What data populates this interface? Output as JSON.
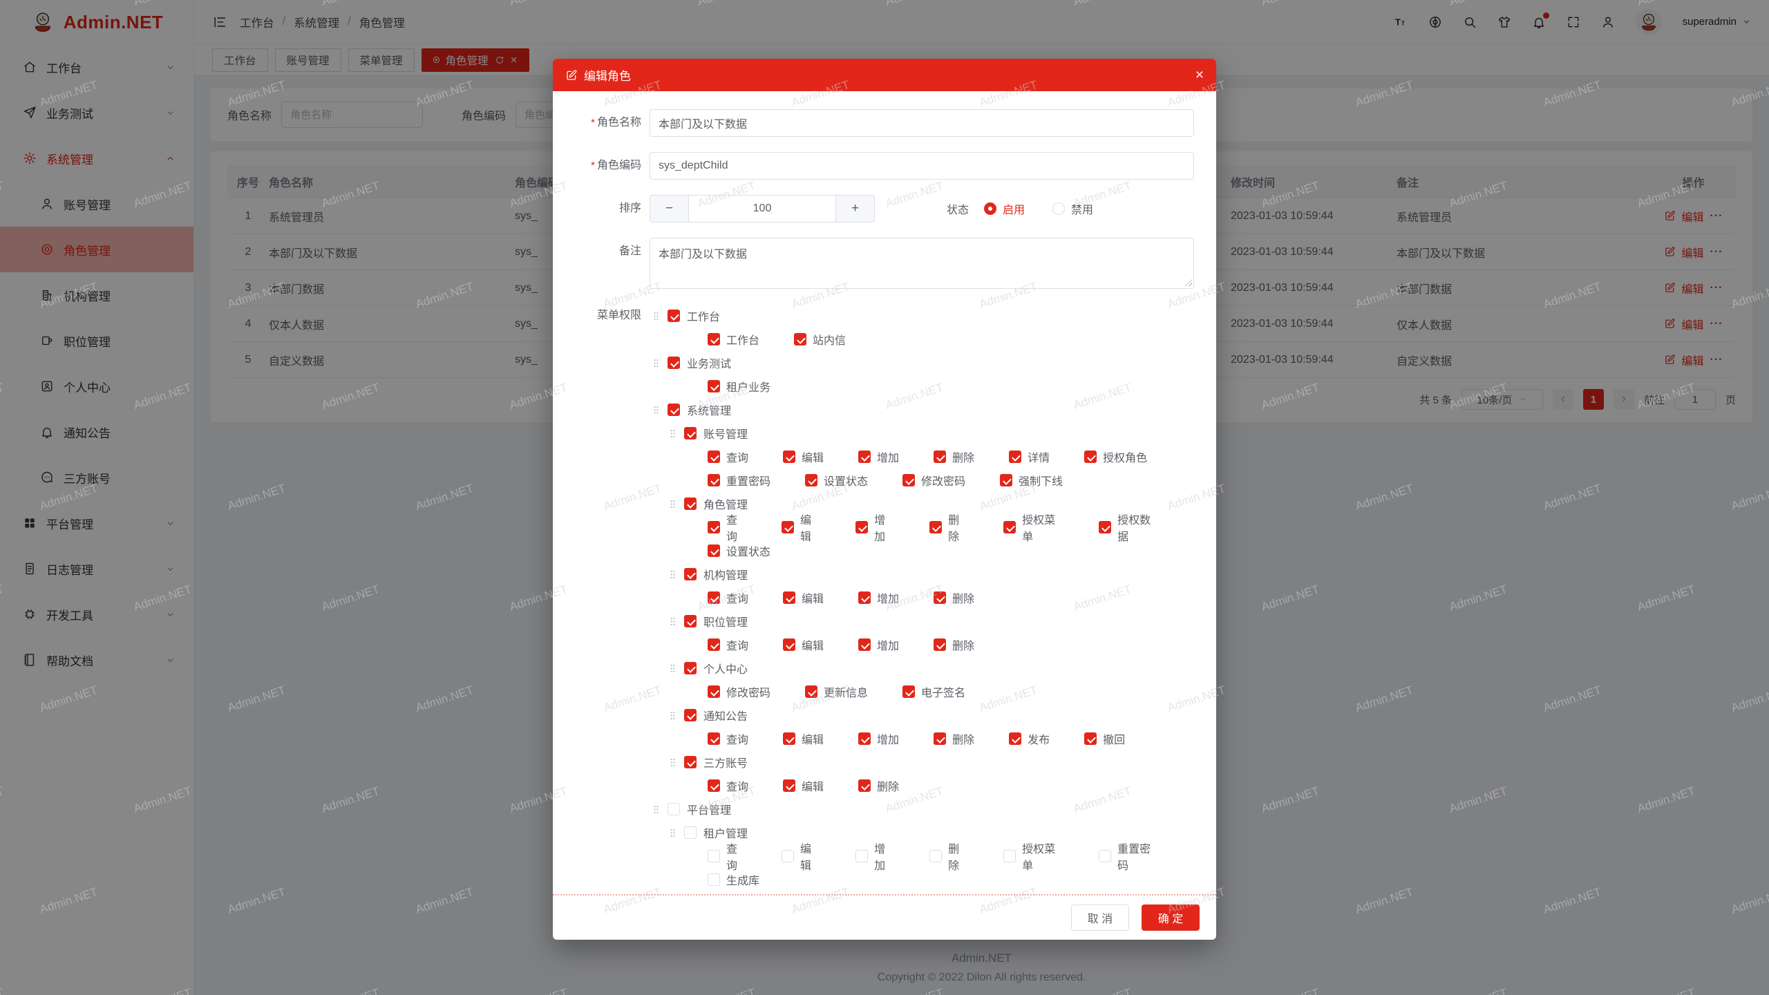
{
  "colors": {
    "accent": "#e2271a"
  },
  "watermark": {
    "text": "Admin.NET"
  },
  "brand": {
    "title": "Admin.NET"
  },
  "sidebar": {
    "items": [
      {
        "icon": "house-icon",
        "label": "工作台",
        "chevron": "down"
      },
      {
        "icon": "send-icon",
        "label": "业务测试",
        "chevron": "down"
      },
      {
        "icon": "gear-icon",
        "label": "系统管理",
        "chevron": "up",
        "highlight": true
      },
      {
        "icon": "user-icon",
        "label": "账号管理",
        "sub": true
      },
      {
        "icon": "target-icon",
        "label": "角色管理",
        "sub": true,
        "active": true
      },
      {
        "icon": "building-icon",
        "label": "机构管理",
        "sub": true
      },
      {
        "icon": "mug-icon",
        "label": "职位管理",
        "sub": true
      },
      {
        "icon": "badge-icon",
        "label": "个人中心",
        "sub": true
      },
      {
        "icon": "bell-icon",
        "label": "通知公告",
        "sub": true
      },
      {
        "icon": "chat-icon",
        "label": "三方账号",
        "sub": true
      },
      {
        "icon": "grid-icon",
        "label": "平台管理",
        "chevron": "down"
      },
      {
        "icon": "doc-icon",
        "label": "日志管理",
        "chevron": "down"
      },
      {
        "icon": "cpu-icon",
        "label": "开发工具",
        "chevron": "down"
      },
      {
        "icon": "book-icon",
        "label": "帮助文档",
        "chevron": "down"
      }
    ]
  },
  "topbar": {
    "breadcrumb": [
      "工作台",
      "系统管理",
      "角色管理"
    ],
    "separator": "/",
    "icons": [
      {
        "name": "font-size-icon"
      },
      {
        "name": "language-icon"
      },
      {
        "name": "search-icon"
      },
      {
        "name": "theme-icon"
      },
      {
        "name": "notification-bell-icon",
        "badge": true
      },
      {
        "name": "fullscreen-icon"
      },
      {
        "name": "profile-icon"
      }
    ],
    "username": "superadmin"
  },
  "tabs": [
    {
      "label": "工作台"
    },
    {
      "label": "账号管理"
    },
    {
      "label": "菜单管理"
    },
    {
      "label": "角色管理",
      "active": true
    }
  ],
  "search": {
    "name_label": "角色名称",
    "name_placeholder": "角色名称",
    "code_label": "角色编码",
    "code_placeholder": "角色编码"
  },
  "table": {
    "columns": [
      "序号",
      "角色名称",
      "角色编码",
      "修改时间",
      "备注",
      "操作"
    ],
    "edit_label": "编辑",
    "more_label": "···",
    "rows": [
      {
        "no": "1",
        "name": "系统管理员",
        "code": "sys_",
        "time": "2023-01-03 10:59:44",
        "remark": "系统管理员"
      },
      {
        "no": "2",
        "name": "本部门及以下数据",
        "code": "sys_",
        "time": "2023-01-03 10:59:44",
        "remark": "本部门及以下数据"
      },
      {
        "no": "3",
        "name": "本部门数据",
        "code": "sys_",
        "time": "2023-01-03 10:59:44",
        "remark": "本部门数据"
      },
      {
        "no": "4",
        "name": "仅本人数据",
        "code": "sys_",
        "time": "2023-01-03 10:59:44",
        "remark": "仅本人数据"
      },
      {
        "no": "5",
        "name": "自定义数据",
        "code": "sys_",
        "time": "2023-01-03 10:59:44",
        "remark": "自定义数据"
      }
    ]
  },
  "pagination": {
    "total": "共 5 条",
    "size": "10条/页",
    "prev": "‹",
    "next": "›",
    "current": "1",
    "goto": "前往",
    "goto_value": "1",
    "unit": "页"
  },
  "modal": {
    "title": "编辑角色",
    "close": "×",
    "required_mark": "*",
    "fields": {
      "name": {
        "label": "角色名称",
        "value": "本部门及以下数据"
      },
      "code": {
        "label": "角色编码",
        "value": "sys_deptChild"
      },
      "sort": {
        "label": "排序",
        "value": "100",
        "minus": "−",
        "plus": "+"
      },
      "status": {
        "label": "状态",
        "enabled": "启用",
        "disabled": "禁用"
      },
      "remark": {
        "label": "备注",
        "value": "本部门及以下数据"
      },
      "perms": {
        "label": "菜单权限"
      }
    },
    "tree": [
      {
        "type": "node",
        "level": 1,
        "checked": true,
        "label": "工作台"
      },
      {
        "type": "actions",
        "checked": true,
        "items": [
          "工作台",
          "站内信"
        ]
      },
      {
        "type": "node",
        "level": 1,
        "checked": true,
        "label": "业务测试"
      },
      {
        "type": "actions",
        "checked": true,
        "items": [
          "租户业务"
        ]
      },
      {
        "type": "node",
        "level": 1,
        "checked": true,
        "label": "系统管理"
      },
      {
        "type": "node",
        "level": 2,
        "checked": true,
        "label": "账号管理"
      },
      {
        "type": "actions",
        "checked": true,
        "items": [
          "查询",
          "编辑",
          "增加",
          "删除",
          "详情",
          "授权角色"
        ]
      },
      {
        "type": "actions",
        "checked": true,
        "items": [
          "重置密码",
          "设置状态",
          "修改密码",
          "强制下线"
        ]
      },
      {
        "type": "node",
        "level": 2,
        "checked": true,
        "label": "角色管理"
      },
      {
        "type": "actions",
        "checked": true,
        "items": [
          "查询",
          "编辑",
          "增加",
          "删除",
          "授权菜单",
          "授权数据"
        ]
      },
      {
        "type": "actions",
        "checked": true,
        "items": [
          "设置状态"
        ]
      },
      {
        "type": "node",
        "level": 2,
        "checked": true,
        "label": "机构管理"
      },
      {
        "type": "actions",
        "checked": true,
        "items": [
          "查询",
          "编辑",
          "增加",
          "删除"
        ]
      },
      {
        "type": "node",
        "level": 2,
        "checked": true,
        "label": "职位管理"
      },
      {
        "type": "actions",
        "checked": true,
        "items": [
          "查询",
          "编辑",
          "增加",
          "删除"
        ]
      },
      {
        "type": "node",
        "level": 2,
        "checked": true,
        "label": "个人中心"
      },
      {
        "type": "actions",
        "checked": true,
        "items": [
          "修改密码",
          "更新信息",
          "电子签名"
        ]
      },
      {
        "type": "node",
        "level": 2,
        "checked": true,
        "label": "通知公告"
      },
      {
        "type": "actions",
        "checked": true,
        "items": [
          "查询",
          "编辑",
          "增加",
          "删除",
          "发布",
          "撤回"
        ]
      },
      {
        "type": "node",
        "level": 2,
        "checked": true,
        "label": "三方账号"
      },
      {
        "type": "actions",
        "checked": true,
        "items": [
          "查询",
          "编辑",
          "删除"
        ]
      },
      {
        "type": "node",
        "level": 1,
        "checked": false,
        "label": "平台管理"
      },
      {
        "type": "node",
        "level": 2,
        "checked": false,
        "label": "租户管理"
      },
      {
        "type": "actions",
        "checked": false,
        "items": [
          "查询",
          "编辑",
          "增加",
          "删除",
          "授权菜单",
          "重置密码"
        ]
      },
      {
        "type": "actions",
        "checked": false,
        "items": [
          "生成库"
        ]
      }
    ],
    "footer": {
      "cancel": "取 消",
      "ok": "确 定"
    }
  },
  "footer": {
    "line1": "Admin.NET",
    "line2": "Copyright © 2022 Dilon All rights reserved."
  }
}
